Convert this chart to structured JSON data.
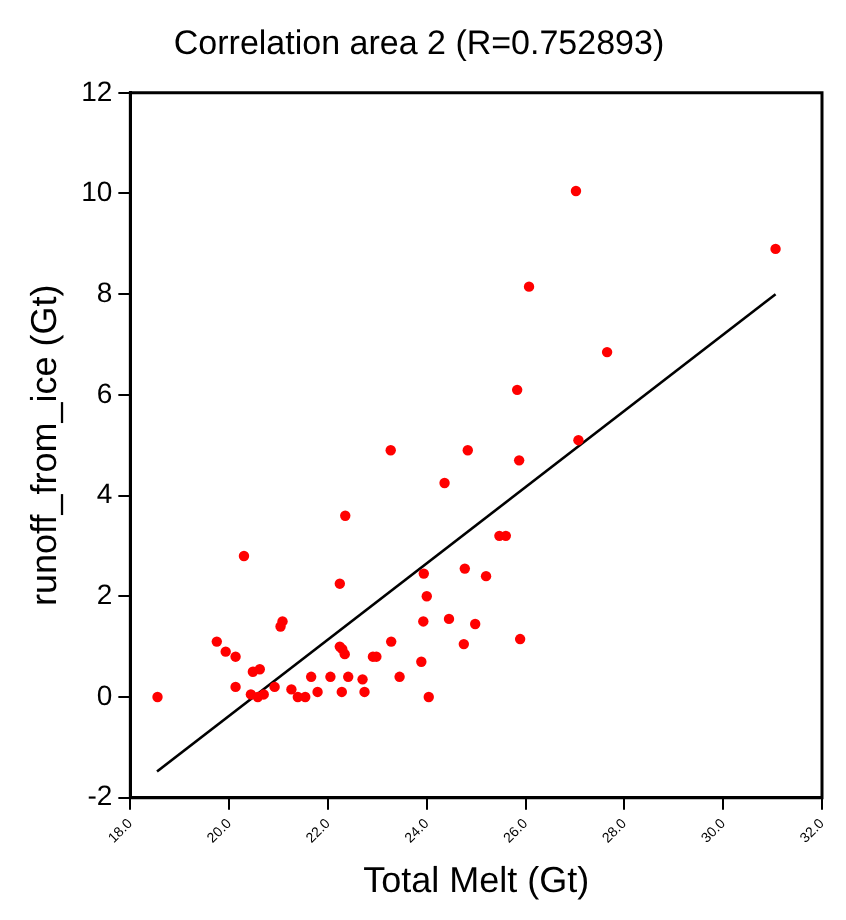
{
  "chart_data": {
    "type": "scatter",
    "title": "Correlation area 2 (R=0.752893)",
    "xlabel": "Total Melt (Gt)",
    "ylabel": "runoff_from_ice (Gt)",
    "xlim": [
      18,
      32
    ],
    "ylim": [
      -2,
      12
    ],
    "xticks": [
      {
        "value": 18,
        "label": "18.0"
      },
      {
        "value": 20,
        "label": "20.0"
      },
      {
        "value": 22,
        "label": "22.0"
      },
      {
        "value": 24,
        "label": "24.0"
      },
      {
        "value": 26,
        "label": "26.0"
      },
      {
        "value": 28,
        "label": "28.0"
      },
      {
        "value": 30,
        "label": "30.0"
      },
      {
        "value": 32,
        "label": "32.0"
      }
    ],
    "yticks": [
      -2,
      0,
      2,
      4,
      6,
      8,
      10,
      12
    ],
    "grid": false,
    "legend": false,
    "marker": "circle",
    "series": [
      {
        "color": "#ff0000",
        "x": [
          18.55,
          19.75,
          19.93,
          20.13,
          20.3,
          20.13,
          20.48,
          20.62,
          20.44,
          20.58,
          20.7,
          20.92,
          21.04,
          21.08,
          21.26,
          21.39,
          21.54,
          21.66,
          21.79,
          22.05,
          22.24,
          22.24,
          22.29,
          22.34,
          22.35,
          22.28,
          22.41,
          22.7,
          22.74,
          22.91,
          22.98,
          23.27,
          23.28,
          23.45,
          23.89,
          23.93,
          23.94,
          24.0,
          24.04,
          24.36,
          24.45,
          24.77,
          24.75,
          24.83,
          24.98,
          25.2,
          25.47,
          25.6,
          25.87,
          25.89,
          25.83,
          26.07,
          27.02,
          27.07,
          27.65,
          31.06
        ],
        "values": [
          0,
          1.1,
          0.9,
          0.8,
          2.8,
          0.2,
          0.5,
          0.55,
          0.05,
          0,
          0.05,
          0.2,
          1.4,
          1.5,
          0.15,
          0,
          0,
          0.4,
          0.1,
          0.4,
          2.25,
          1.0,
          0.95,
          0.85,
          3.6,
          0.1,
          0.4,
          0.35,
          0.1,
          0.8,
          0.8,
          4.9,
          1.1,
          0.4,
          0.7,
          1.5,
          2.45,
          2.0,
          0,
          4.25,
          1.55,
          2.55,
          1.05,
          4.9,
          1.45,
          2.4,
          3.2,
          3.2,
          4.7,
          1.15,
          6.1,
          8.15,
          10.05,
          5.1,
          6.85,
          8.9
        ]
      },
      {
        "type": "line",
        "color": "#000000",
        "marker": "none",
        "x": [
          18.54,
          31.06
        ],
        "values": [
          -1.48,
          8.0
        ]
      }
    ]
  }
}
